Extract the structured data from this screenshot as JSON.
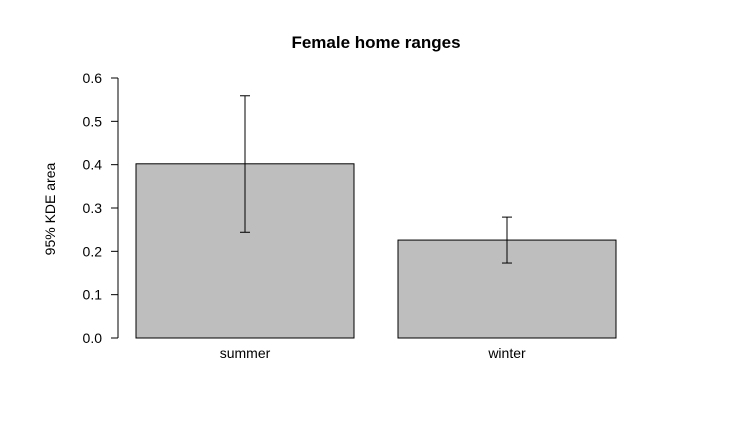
{
  "chart_data": {
    "type": "bar",
    "title": "Female home ranges",
    "xlabel": "",
    "ylabel": "95% KDE area",
    "categories": [
      "summer",
      "winter"
    ],
    "values": [
      0.402,
      0.226
    ],
    "error_bars": [
      {
        "low": 0.244,
        "high": 0.559
      },
      {
        "low": 0.173,
        "high": 0.279
      }
    ],
    "ylim": [
      0,
      0.6
    ],
    "yticks": [
      "0.0",
      "0.1",
      "0.2",
      "0.3",
      "0.4",
      "0.5",
      "0.6"
    ],
    "grid": false,
    "legend": "none",
    "bar_color": "#bebebe"
  }
}
